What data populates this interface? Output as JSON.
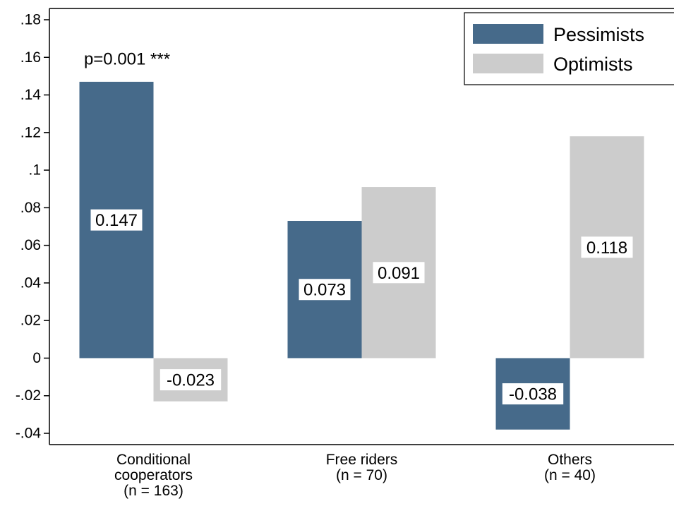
{
  "chart_data": {
    "type": "bar",
    "categories": [
      "Conditional cooperators (n = 163)",
      "Free riders (n = 70)",
      "Others (n = 40)"
    ],
    "category_label_lines": [
      [
        "Conditional",
        "cooperators",
        "(n = 163)"
      ],
      [
        "Free riders",
        "(n = 70)"
      ],
      [
        "Others",
        "(n = 40)"
      ]
    ],
    "series": [
      {
        "name": "Pessimists",
        "color": "#466a8a",
        "values": [
          0.147,
          0.073,
          -0.038
        ],
        "labels": [
          "0.147",
          "0.073",
          "-0.038"
        ]
      },
      {
        "name": "Optimists",
        "color": "#cccccc",
        "values": [
          -0.023,
          0.091,
          0.118
        ],
        "labels": [
          "-0.023",
          "0.091",
          "0.118"
        ]
      }
    ],
    "ylim": [
      -0.046,
      0.186
    ],
    "yticks": [
      -0.04,
      -0.02,
      0,
      0.02,
      0.04,
      0.06,
      0.08,
      0.1,
      0.12,
      0.14,
      0.16,
      0.18
    ],
    "ytick_labels": [
      "-.04",
      "-.02",
      "0",
      ".02",
      ".04",
      ".06",
      ".08",
      ".1",
      ".12",
      ".14",
      ".16",
      ".18"
    ],
    "annotations": [
      {
        "text": "p=0.001 ***",
        "category": 0
      }
    ],
    "legend_position": "top-right",
    "grid": false,
    "title": "",
    "xlabel": "",
    "ylabel": ""
  }
}
